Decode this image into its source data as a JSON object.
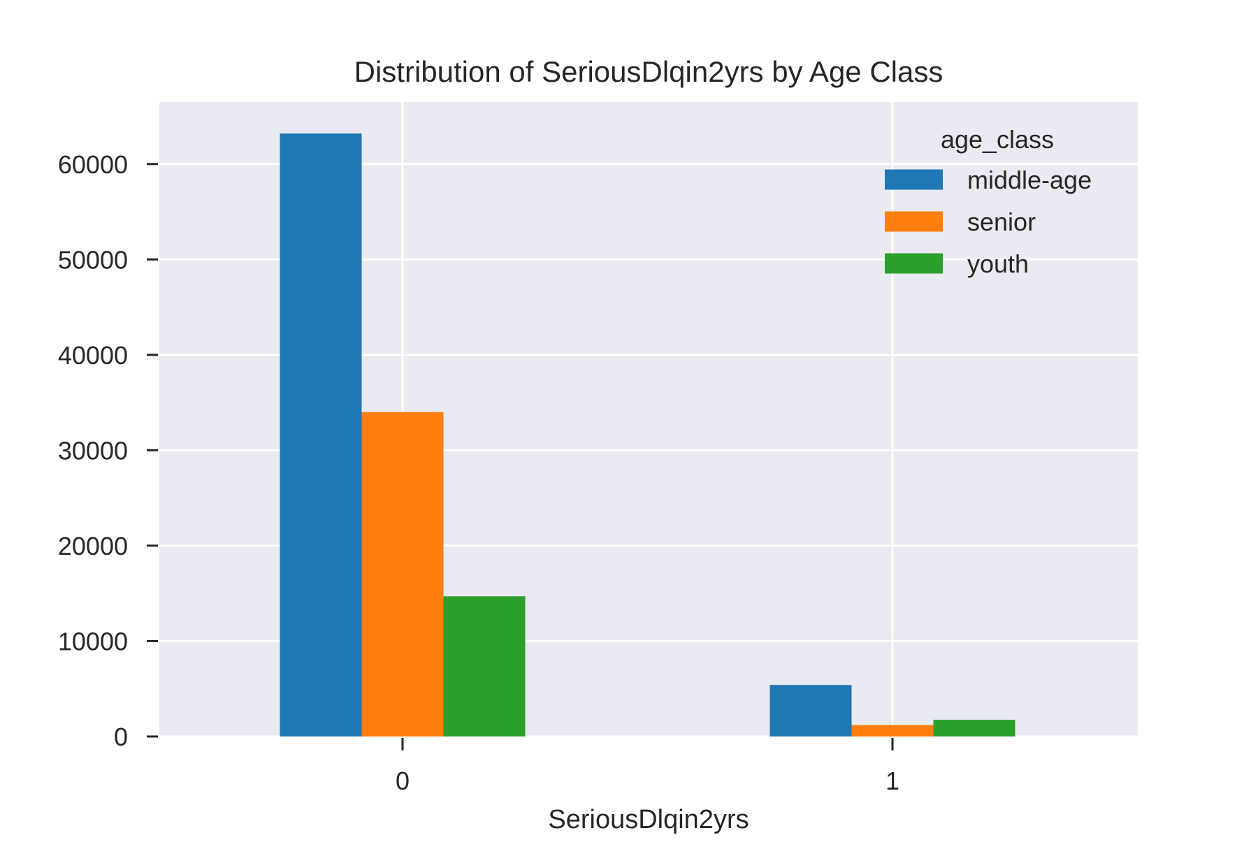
{
  "chart_data": {
    "type": "bar",
    "title": "Distribution of SeriousDlqin2yrs by Age Class",
    "xlabel": "SeriousDlqin2yrs",
    "ylabel": "",
    "categories": [
      "0",
      "1"
    ],
    "ylim": [
      0,
      66500
    ],
    "yticks": [
      0,
      10000,
      20000,
      30000,
      40000,
      50000,
      60000
    ],
    "grid": true,
    "legend": {
      "title": "age_class",
      "placement": "top-right"
    },
    "series": [
      {
        "name": "middle-age",
        "values": [
          63200,
          5400
        ],
        "color": "#1f77b4"
      },
      {
        "name": "senior",
        "values": [
          34000,
          1200
        ],
        "color": "#ff7f0e"
      },
      {
        "name": "youth",
        "values": [
          14700,
          1750
        ],
        "color": "#2ca02c"
      }
    ]
  },
  "colors": {
    "plot_background": "#eaeaf2",
    "grid": "#ffffff",
    "text": "#262626"
  }
}
